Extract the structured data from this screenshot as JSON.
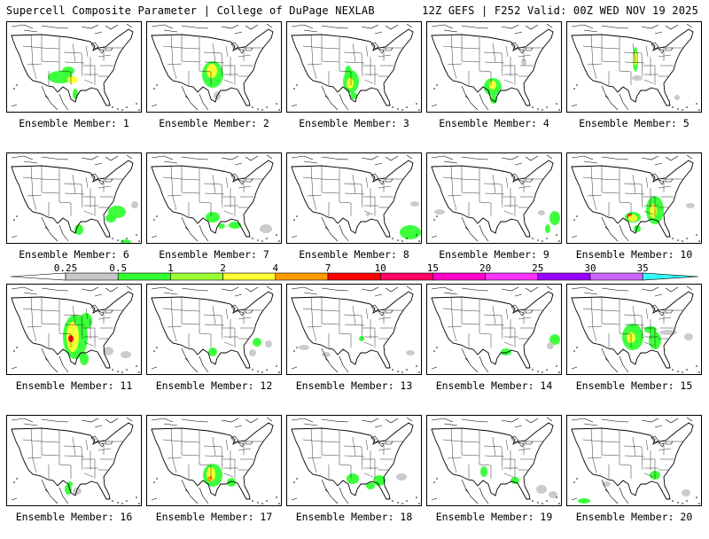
{
  "header": {
    "title": "Supercell Composite Parameter | College of DuPage NEXLAB",
    "run_info": "12Z GEFS | F252 Valid: 00Z WED NOV 19 2025"
  },
  "colorbar": {
    "ticks": [
      "0.25",
      "0.5",
      "1",
      "2",
      "4",
      "7",
      "10",
      "15",
      "20",
      "25",
      "30",
      "35"
    ],
    "colors": [
      "#c8c8c8",
      "#33ff33",
      "#99ff33",
      "#ffff33",
      "#ff9900",
      "#ff0000",
      "#ff0066",
      "#ff00cc",
      "#ff33ff",
      "#9900ff",
      "#cc66ff",
      "#33ffff"
    ]
  },
  "members": [
    {
      "label": "Ensemble Member: 1",
      "blobs": [
        [
          61,
          63,
          14,
          7,
          "g"
        ],
        [
          70,
          56,
          7,
          5,
          "g"
        ],
        [
          75,
          66,
          6,
          4,
          "y"
        ],
        [
          78,
          82,
          3,
          6,
          "g"
        ]
      ]
    },
    {
      "label": "Ensemble Member: 2",
      "blobs": [
        [
          75,
          60,
          12,
          15,
          "g"
        ],
        [
          74,
          56,
          6,
          8,
          "y"
        ],
        [
          80,
          84,
          4,
          5,
          "w"
        ]
      ]
    },
    {
      "label": "Ensemble Member: 3",
      "blobs": [
        [
          73,
          68,
          9,
          13,
          "g"
        ],
        [
          70,
          58,
          4,
          8,
          "g"
        ],
        [
          72,
          70,
          4,
          6,
          "y"
        ],
        [
          76,
          84,
          4,
          4,
          "g"
        ]
      ]
    },
    {
      "label": "Ensemble Member: 4",
      "blobs": [
        [
          75,
          74,
          10,
          10,
          "g"
        ],
        [
          75,
          72,
          4,
          5,
          "y"
        ],
        [
          76,
          88,
          4,
          5,
          "g"
        ],
        [
          110,
          46,
          3,
          4,
          "w"
        ]
      ]
    },
    {
      "label": "Ensemble Member: 5",
      "blobs": [
        [
          78,
          43,
          3,
          14,
          "g"
        ],
        [
          78,
          42,
          2,
          8,
          "y"
        ],
        [
          80,
          64,
          6,
          3,
          "w"
        ],
        [
          125,
          86,
          3,
          3,
          "w"
        ]
      ]
    },
    {
      "label": "Ensemble Member: 6",
      "blobs": [
        [
          125,
          67,
          10,
          7,
          "g"
        ],
        [
          118,
          74,
          6,
          5,
          "g"
        ],
        [
          82,
          87,
          5,
          6,
          "g"
        ],
        [
          135,
          102,
          6,
          4,
          "g"
        ],
        [
          145,
          59,
          4,
          4,
          "w"
        ]
      ]
    },
    {
      "label": "Ensemble Member: 7",
      "blobs": [
        [
          75,
          73,
          8,
          6,
          "g"
        ],
        [
          85,
          83,
          4,
          3,
          "g"
        ],
        [
          100,
          82,
          7,
          4,
          "g"
        ],
        [
          135,
          86,
          7,
          5,
          "w"
        ]
      ]
    },
    {
      "label": "Ensemble Member: 8",
      "blobs": [
        [
          140,
          90,
          12,
          8,
          "g"
        ],
        [
          145,
          58,
          5,
          3,
          "w"
        ],
        [
          92,
          70,
          2,
          2,
          "w"
        ]
      ]
    },
    {
      "label": "Ensemble Member: 9",
      "blobs": [
        [
          145,
          74,
          6,
          8,
          "g"
        ],
        [
          137,
          86,
          3,
          5,
          "g"
        ],
        [
          15,
          67,
          6,
          3,
          "w"
        ],
        [
          130,
          68,
          4,
          3,
          "w"
        ]
      ]
    },
    {
      "label": "Ensemble Member: 10",
      "blobs": [
        [
          75,
          73,
          9,
          6,
          "g"
        ],
        [
          72,
          72,
          3,
          3,
          "r"
        ],
        [
          75,
          74,
          5,
          4,
          "y"
        ],
        [
          100,
          65,
          10,
          16,
          "g"
        ],
        [
          98,
          66,
          4,
          8,
          "y"
        ],
        [
          80,
          86,
          4,
          4,
          "g"
        ],
        [
          140,
          60,
          5,
          3,
          "w"
        ]
      ]
    },
    {
      "label": "Ensemble Member: 11",
      "blobs": [
        [
          78,
          60,
          14,
          25,
          "g"
        ],
        [
          75,
          60,
          7,
          17,
          "y"
        ],
        [
          73,
          62,
          3,
          4,
          "r"
        ],
        [
          90,
          42,
          7,
          9,
          "g"
        ],
        [
          88,
          85,
          5,
          7,
          "g"
        ],
        [
          115,
          76,
          6,
          5,
          "w"
        ],
        [
          135,
          80,
          6,
          4,
          "w"
        ]
      ]
    },
    {
      "label": "Ensemble Member: 12",
      "blobs": [
        [
          75,
          77,
          5,
          5,
          "g"
        ],
        [
          125,
          66,
          5,
          5,
          "g"
        ],
        [
          138,
          68,
          4,
          4,
          "w"
        ],
        [
          120,
          78,
          4,
          4,
          "w"
        ]
      ]
    },
    {
      "label": "Ensemble Member: 13",
      "blobs": [
        [
          85,
          62,
          3,
          3,
          "g"
        ],
        [
          20,
          72,
          6,
          3,
          "w"
        ],
        [
          45,
          80,
          5,
          3,
          "w"
        ],
        [
          140,
          78,
          5,
          3,
          "w"
        ]
      ]
    },
    {
      "label": "Ensemble Member: 14",
      "blobs": [
        [
          90,
          77,
          6,
          4,
          "g"
        ],
        [
          145,
          63,
          6,
          6,
          "g"
        ],
        [
          140,
          70,
          4,
          4,
          "w"
        ]
      ]
    },
    {
      "label": "Ensemble Member: 15",
      "blobs": [
        [
          75,
          60,
          12,
          15,
          "g"
        ],
        [
          73,
          61,
          5,
          6,
          "y"
        ],
        [
          100,
          64,
          7,
          10,
          "g"
        ],
        [
          95,
          52,
          7,
          4,
          "g"
        ],
        [
          115,
          55,
          10,
          3,
          "w"
        ],
        [
          138,
          60,
          5,
          4,
          "w"
        ]
      ]
    },
    {
      "label": "Ensemble Member: 16",
      "blobs": [
        [
          70,
          84,
          4,
          6,
          "g"
        ],
        [
          80,
          86,
          5,
          4,
          "w"
        ],
        [
          72,
          78,
          3,
          3,
          "g"
        ]
      ]
    },
    {
      "label": "Ensemble Member: 17",
      "blobs": [
        [
          75,
          68,
          11,
          13,
          "g"
        ],
        [
          73,
          67,
          5,
          8,
          "y"
        ],
        [
          72,
          72,
          3,
          3,
          "o"
        ],
        [
          96,
          76,
          5,
          5,
          "g"
        ]
      ]
    },
    {
      "label": "Ensemble Member: 18",
      "blobs": [
        [
          75,
          72,
          7,
          6,
          "g"
        ],
        [
          105,
          74,
          7,
          6,
          "g"
        ],
        [
          95,
          80,
          5,
          4,
          "g"
        ],
        [
          130,
          70,
          6,
          4,
          "w"
        ]
      ]
    },
    {
      "label": "Ensemble Member: 19",
      "blobs": [
        [
          65,
          64,
          4,
          6,
          "g"
        ],
        [
          100,
          74,
          5,
          4,
          "g"
        ],
        [
          130,
          84,
          6,
          5,
          "w"
        ],
        [
          143,
          90,
          5,
          4,
          "w"
        ]
      ]
    },
    {
      "label": "Ensemble Member: 20",
      "blobs": [
        [
          100,
          68,
          6,
          5,
          "g"
        ],
        [
          45,
          78,
          5,
          3,
          "w"
        ],
        [
          135,
          88,
          5,
          4,
          "w"
        ],
        [
          20,
          97,
          7,
          3,
          "g"
        ]
      ]
    }
  ]
}
